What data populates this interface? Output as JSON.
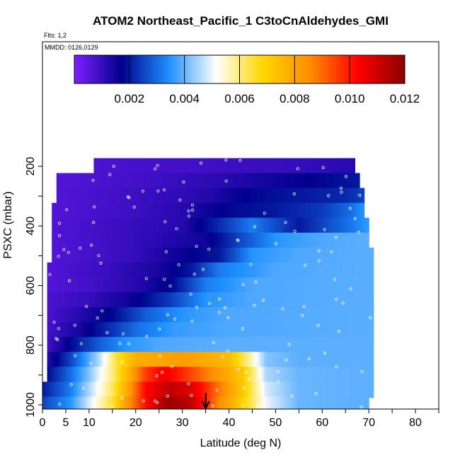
{
  "chart_data": {
    "type": "heatmap",
    "title": "ATOM2 Northeast_Pacific_1 C3toCnAldehydes_GMI",
    "subtitle_flights": "Flts: 1,2",
    "subtitle_dates": "MMDD: 0126,0129",
    "xlabel": "Latitude (deg N)",
    "ylabel": "PSXC (mbar)",
    "xlim": [
      0,
      85
    ],
    "ylim": [
      1000,
      100
    ],
    "x_ticks": [
      0,
      5,
      10,
      20,
      30,
      40,
      50,
      60,
      70,
      80
    ],
    "y_ticks": [
      200,
      400,
      600,
      800,
      1000
    ],
    "colorbar": {
      "range": [
        0,
        0.012
      ],
      "ticks": [
        "0.002",
        "0.004",
        "0.006",
        "0.008",
        "0.010",
        "0.012"
      ],
      "tick_values": [
        0.002,
        0.004,
        0.006,
        0.008,
        0.01,
        0.012
      ],
      "colors": [
        "#7f1fff",
        "#00008b",
        "#1e90ff",
        "#ffffff",
        "#ffd700",
        "#ff8c00",
        "#ff0000",
        "#8b0000"
      ]
    },
    "marker": {
      "x": 35,
      "y": 1000,
      "label": "arrow"
    },
    "pressure_bins": [
      {
        "p": 200,
        "lat_min": 11,
        "lat_max": 67,
        "points": [
          [
            11,
            0.0007
          ],
          [
            25,
            0.0008
          ],
          [
            40,
            0.0009
          ],
          [
            55,
            0.001
          ],
          [
            67,
            0.0012
          ]
        ]
      },
      {
        "p": 250,
        "lat_min": 3,
        "lat_max": 68,
        "points": [
          [
            3,
            0.0006
          ],
          [
            20,
            0.0008
          ],
          [
            30,
            0.001
          ],
          [
            40,
            0.0012
          ],
          [
            50,
            0.0015
          ],
          [
            60,
            0.0018
          ],
          [
            68,
            0.002
          ]
        ]
      },
      {
        "p": 300,
        "lat_min": 3,
        "lat_max": 69,
        "points": [
          [
            3,
            0.0006
          ],
          [
            20,
            0.0009
          ],
          [
            35,
            0.0012
          ],
          [
            45,
            0.0018
          ],
          [
            55,
            0.002
          ],
          [
            65,
            0.0022
          ],
          [
            69,
            0.0025
          ]
        ]
      },
      {
        "p": 350,
        "lat_min": 2,
        "lat_max": 69,
        "points": [
          [
            2,
            0.0006
          ],
          [
            20,
            0.0009
          ],
          [
            30,
            0.0012
          ],
          [
            40,
            0.0018
          ],
          [
            50,
            0.002
          ],
          [
            60,
            0.0024
          ],
          [
            66,
            0.003
          ],
          [
            69,
            0.0035
          ]
        ]
      },
      {
        "p": 400,
        "lat_min": 2,
        "lat_max": 70,
        "points": [
          [
            2,
            0.0006
          ],
          [
            15,
            0.0009
          ],
          [
            30,
            0.0012
          ],
          [
            40,
            0.0025
          ],
          [
            45,
            0.0032
          ],
          [
            55,
            0.002
          ],
          [
            65,
            0.003
          ],
          [
            70,
            0.0036
          ]
        ]
      },
      {
        "p": 450,
        "lat_min": 2,
        "lat_max": 70,
        "points": [
          [
            2,
            0.0006
          ],
          [
            20,
            0.001
          ],
          [
            35,
            0.0015
          ],
          [
            42,
            0.0025
          ],
          [
            50,
            0.0035
          ],
          [
            60,
            0.0038
          ],
          [
            70,
            0.0039
          ]
        ]
      },
      {
        "p": 500,
        "lat_min": 2,
        "lat_max": 71,
        "points": [
          [
            2,
            0.0006
          ],
          [
            20,
            0.001
          ],
          [
            30,
            0.0016
          ],
          [
            38,
            0.002
          ],
          [
            45,
            0.0035
          ],
          [
            55,
            0.0038
          ],
          [
            71,
            0.0039
          ]
        ]
      },
      {
        "p": 550,
        "lat_min": 1,
        "lat_max": 71,
        "points": [
          [
            1,
            0.0006
          ],
          [
            15,
            0.001
          ],
          [
            25,
            0.0014
          ],
          [
            32,
            0.002
          ],
          [
            38,
            0.0032
          ],
          [
            50,
            0.0038
          ],
          [
            71,
            0.0039
          ]
        ]
      },
      {
        "p": 600,
        "lat_min": 1,
        "lat_max": 71,
        "points": [
          [
            1,
            0.0006
          ],
          [
            10,
            0.0008
          ],
          [
            20,
            0.0012
          ],
          [
            28,
            0.0018
          ],
          [
            35,
            0.0032
          ],
          [
            45,
            0.0038
          ],
          [
            71,
            0.0039
          ]
        ]
      },
      {
        "p": 650,
        "lat_min": 1,
        "lat_max": 71,
        "points": [
          [
            1,
            0.0007
          ],
          [
            10,
            0.001
          ],
          [
            20,
            0.0016
          ],
          [
            28,
            0.0025
          ],
          [
            35,
            0.0035
          ],
          [
            45,
            0.0038
          ],
          [
            71,
            0.0039
          ]
        ]
      },
      {
        "p": 700,
        "lat_min": 1,
        "lat_max": 71,
        "points": [
          [
            1,
            0.0007
          ],
          [
            8,
            0.0012
          ],
          [
            15,
            0.0018
          ],
          [
            22,
            0.0028
          ],
          [
            30,
            0.0035
          ],
          [
            40,
            0.0038
          ],
          [
            71,
            0.0039
          ]
        ]
      },
      {
        "p": 750,
        "lat_min": 1,
        "lat_max": 71,
        "points": [
          [
            1,
            0.0008
          ],
          [
            8,
            0.0014
          ],
          [
            14,
            0.0022
          ],
          [
            20,
            0.003
          ],
          [
            28,
            0.0036
          ],
          [
            40,
            0.0038
          ],
          [
            71,
            0.0039
          ]
        ]
      },
      {
        "p": 800,
        "lat_min": 1,
        "lat_max": 71,
        "points": [
          [
            1,
            0.0008
          ],
          [
            6,
            0.0018
          ],
          [
            12,
            0.0028
          ],
          [
            18,
            0.0035
          ],
          [
            25,
            0.0038
          ],
          [
            40,
            0.0039
          ],
          [
            71,
            0.0039
          ]
        ]
      },
      {
        "p": 850,
        "lat_min": 1,
        "lat_max": 71,
        "points": [
          [
            1,
            0.0012
          ],
          [
            6,
            0.0025
          ],
          [
            12,
            0.0045
          ],
          [
            16,
            0.0065
          ],
          [
            20,
            0.0078
          ],
          [
            30,
            0.0082
          ],
          [
            40,
            0.0075
          ],
          [
            44,
            0.006
          ],
          [
            48,
            0.0042
          ],
          [
            55,
            0.0039
          ],
          [
            71,
            0.0039
          ]
        ]
      },
      {
        "p": 900,
        "lat_min": 1,
        "lat_max": 71,
        "points": [
          [
            1,
            0.0018
          ],
          [
            6,
            0.003
          ],
          [
            10,
            0.0042
          ],
          [
            15,
            0.006
          ],
          [
            18,
            0.0075
          ],
          [
            22,
            0.0095
          ],
          [
            26,
            0.0105
          ],
          [
            30,
            0.0098
          ],
          [
            38,
            0.0082
          ],
          [
            43,
            0.0072
          ],
          [
            48,
            0.0045
          ],
          [
            55,
            0.004
          ],
          [
            71,
            0.0039
          ]
        ]
      },
      {
        "p": 950,
        "lat_min": 0,
        "lat_max": 71,
        "points": [
          [
            0,
            0.002
          ],
          [
            6,
            0.0032
          ],
          [
            10,
            0.0045
          ],
          [
            15,
            0.0062
          ],
          [
            18,
            0.0078
          ],
          [
            22,
            0.0102
          ],
          [
            27,
            0.0112
          ],
          [
            32,
            0.0108
          ],
          [
            38,
            0.0088
          ],
          [
            43,
            0.0072
          ],
          [
            48,
            0.0048
          ],
          [
            55,
            0.004
          ],
          [
            71,
            0.0039
          ]
        ]
      },
      {
        "p": 1000,
        "lat_min": 0,
        "lat_max": 70,
        "points": [
          [
            0,
            0.0025
          ],
          [
            6,
            0.0035
          ],
          [
            10,
            0.0048
          ],
          [
            15,
            0.0065
          ],
          [
            18,
            0.0082
          ],
          [
            23,
            0.0105
          ],
          [
            27,
            0.0118
          ],
          [
            32,
            0.0112
          ],
          [
            38,
            0.0085
          ],
          [
            43,
            0.007
          ],
          [
            48,
            0.005
          ],
          [
            55,
            0.004
          ],
          [
            70,
            0.0039
          ]
        ]
      }
    ]
  }
}
